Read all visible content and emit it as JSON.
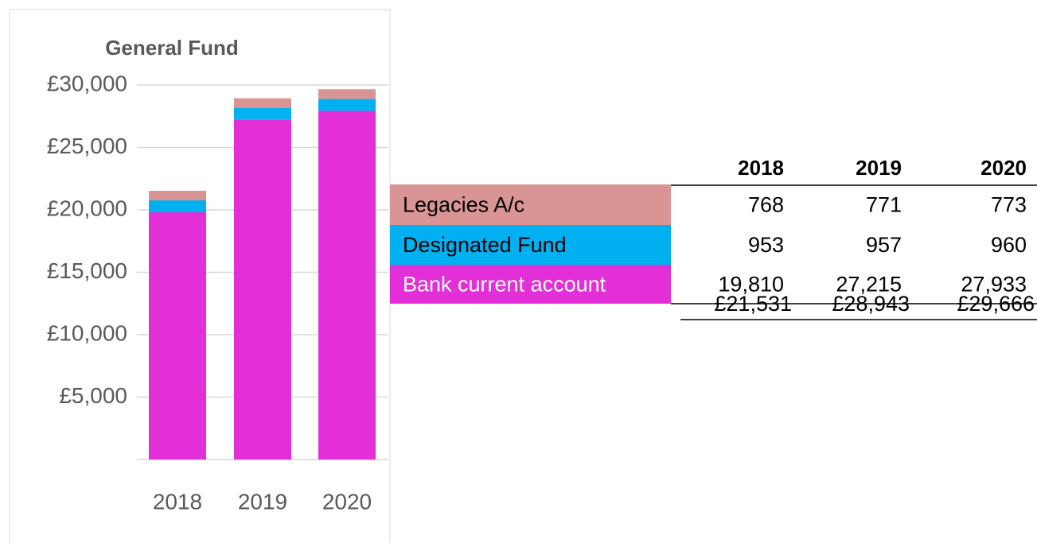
{
  "chart_data": {
    "type": "stacked_bar",
    "title": "General Fund",
    "categories": [
      "2018",
      "2019",
      "2020"
    ],
    "series": [
      {
        "name": "Legacies A/c",
        "color": "#d99594",
        "values": [
          768,
          771,
          773
        ],
        "value_labels": [
          "768",
          "771",
          "773"
        ]
      },
      {
        "name": "Designated Fund",
        "color": "#00b0f0",
        "values": [
          953,
          957,
          960
        ],
        "value_labels": [
          "953",
          "957",
          "960"
        ]
      },
      {
        "name": "Bank current account",
        "color": "#e22fd8",
        "values": [
          19810,
          27215,
          27933
        ],
        "value_labels": [
          "19,810",
          "27,215",
          "27,933"
        ]
      }
    ],
    "totals": [
      "£21,531",
      "£28,943",
      "£29,666"
    ],
    "ylim": [
      0,
      30000
    ],
    "yticks": [
      {
        "value": 5000,
        "label": "£5,000"
      },
      {
        "value": 10000,
        "label": "£10,000"
      },
      {
        "value": 15000,
        "label": "£15,000"
      },
      {
        "value": 20000,
        "label": "£20,000"
      },
      {
        "value": 25000,
        "label": "£25,000"
      },
      {
        "value": 30000,
        "label": "£30,000"
      }
    ],
    "grid": true
  }
}
